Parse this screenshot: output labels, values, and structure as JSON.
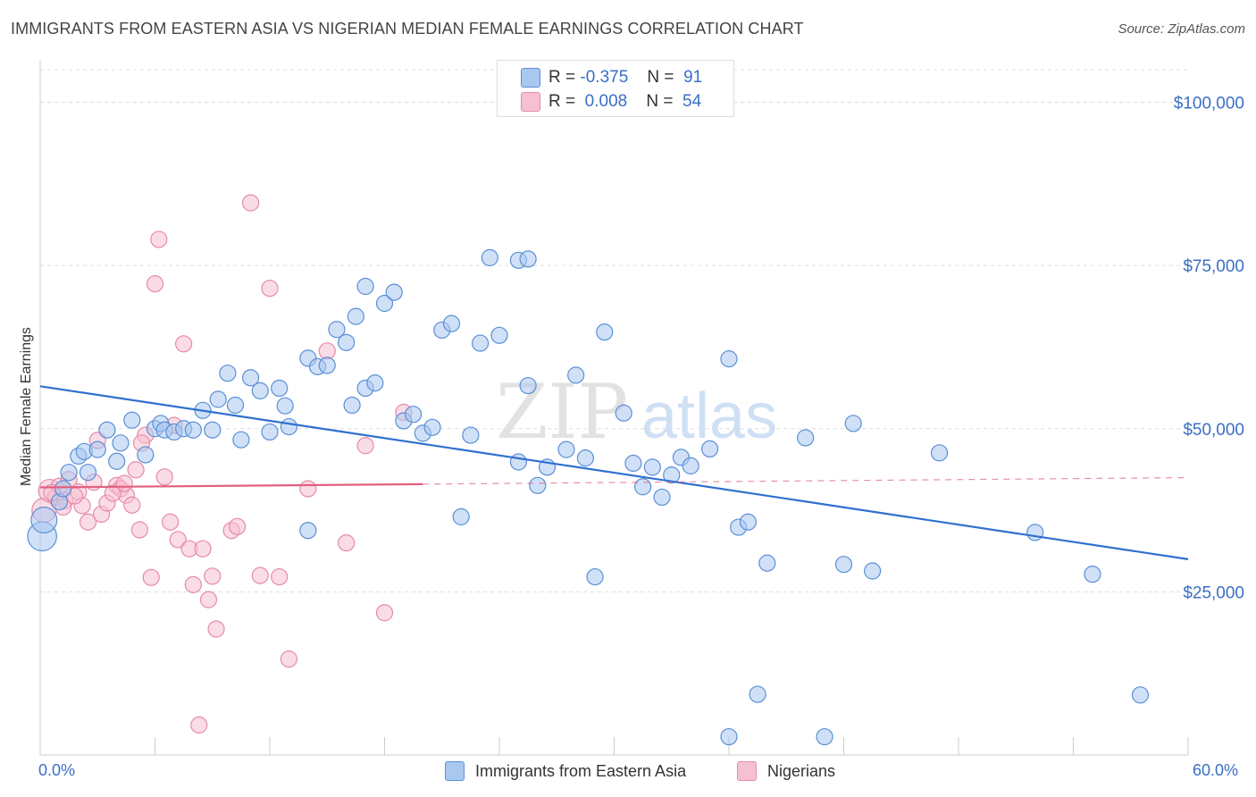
{
  "title": "IMMIGRANTS FROM EASTERN ASIA VS NIGERIAN MEDIAN FEMALE EARNINGS CORRELATION CHART",
  "source": "Source: ZipAtlas.com",
  "watermark": {
    "zip": "ZIP",
    "atlas": "atlas"
  },
  "colors": {
    "blue_fill": "#a9c8f0",
    "blue_stroke": "#5b8fd6",
    "blue_line": "#2f6fcf",
    "pink_fill": "#f6c0d2",
    "pink_stroke": "#e68aa8",
    "pink_line": "#e0607f",
    "axis_label": "#3a6fc4",
    "grid": "#dddddd"
  },
  "stats": {
    "blue": {
      "r_label": "R =",
      "r_value": "-0.375",
      "n_label": "N =",
      "n_value": "91"
    },
    "pink": {
      "r_label": "R =",
      "r_value": "0.008",
      "n_label": "N =",
      "n_value": "54"
    }
  },
  "legend": {
    "blue": "Immigrants from Eastern Asia",
    "pink": "Nigerians"
  },
  "chart_data": {
    "type": "scatter",
    "title": "IMMIGRANTS FROM EASTERN ASIA VS NIGERIAN MEDIAN FEMALE EARNINGS CORRELATION CHART",
    "xlabel": "",
    "ylabel": "Median Female Earnings",
    "xlim": [
      0,
      60
    ],
    "ylim": [
      0,
      105000
    ],
    "x_tick_labels": [
      "0.0%",
      "60.0%"
    ],
    "y_ticks": [
      25000,
      50000,
      75000,
      100000
    ],
    "y_tick_labels": [
      "$25,000",
      "$50,000",
      "$75,000",
      "$100,000"
    ],
    "grid": true,
    "legend_position": "bottom",
    "series": [
      {
        "name": "Immigrants from Eastern Asia",
        "color": "#a9c8f0",
        "trend": {
          "x": [
            0,
            60
          ],
          "y": [
            56500,
            30000
          ]
        },
        "points": [
          [
            0.1,
            33500,
            1.8
          ],
          [
            0.2,
            36000,
            1.6
          ],
          [
            1.0,
            38800,
            1
          ],
          [
            1.2,
            40800,
            1
          ],
          [
            1.5,
            43300,
            1
          ],
          [
            2.0,
            45800,
            1
          ],
          [
            2.3,
            46500,
            1
          ],
          [
            2.5,
            43300,
            1
          ],
          [
            3.0,
            46800,
            1
          ],
          [
            3.5,
            49800,
            1
          ],
          [
            4.0,
            45000,
            1
          ],
          [
            4.2,
            47800,
            1
          ],
          [
            4.8,
            51300,
            1
          ],
          [
            5.5,
            46000,
            1
          ],
          [
            6.0,
            50000,
            1
          ],
          [
            6.3,
            50800,
            1
          ],
          [
            6.5,
            49800,
            1
          ],
          [
            7.0,
            49500,
            1
          ],
          [
            7.5,
            50000,
            1
          ],
          [
            8.0,
            49800,
            1
          ],
          [
            8.5,
            52800,
            1
          ],
          [
            9.0,
            49800,
            1
          ],
          [
            9.3,
            54500,
            1
          ],
          [
            9.8,
            58500,
            1
          ],
          [
            10.2,
            53600,
            1
          ],
          [
            10.5,
            48300,
            1
          ],
          [
            11.0,
            57800,
            1
          ],
          [
            11.5,
            55800,
            1
          ],
          [
            12.0,
            49500,
            1
          ],
          [
            12.5,
            56200,
            1
          ],
          [
            13.0,
            50300,
            1
          ],
          [
            12.8,
            53500,
            1
          ],
          [
            14.0,
            60800,
            1
          ],
          [
            14.5,
            59500,
            1
          ],
          [
            15.0,
            59700,
            1
          ],
          [
            16.0,
            63200,
            1
          ],
          [
            15.5,
            65200,
            1
          ],
          [
            16.5,
            67200,
            1
          ],
          [
            17.0,
            71800,
            1
          ],
          [
            16.3,
            53600,
            1
          ],
          [
            17.0,
            56200,
            1
          ],
          [
            17.5,
            57000,
            1
          ],
          [
            18.0,
            69200,
            1
          ],
          [
            18.5,
            70900,
            1
          ],
          [
            19.0,
            51200,
            1
          ],
          [
            19.5,
            52200,
            1
          ],
          [
            20.0,
            49300,
            1
          ],
          [
            20.5,
            50200,
            1
          ],
          [
            21.0,
            65100,
            1
          ],
          [
            21.5,
            66100,
            1
          ],
          [
            22.0,
            36500,
            1
          ],
          [
            22.5,
            49000,
            1
          ],
          [
            23.0,
            63100,
            1
          ],
          [
            23.5,
            76200,
            1
          ],
          [
            24.0,
            64300,
            1
          ],
          [
            25.0,
            75800,
            1
          ],
          [
            25.5,
            76000,
            1
          ],
          [
            25.0,
            44900,
            1
          ],
          [
            25.5,
            56600,
            1
          ],
          [
            26.0,
            41300,
            1
          ],
          [
            26.5,
            44100,
            1
          ],
          [
            27.5,
            46800,
            1
          ],
          [
            28.0,
            58200,
            1
          ],
          [
            28.5,
            45500,
            1
          ],
          [
            29.0,
            27300,
            1
          ],
          [
            29.5,
            64800,
            1
          ],
          [
            30.5,
            52400,
            1
          ],
          [
            31.0,
            44700,
            1
          ],
          [
            31.5,
            41100,
            1
          ],
          [
            32.0,
            44100,
            1
          ],
          [
            32.5,
            39500,
            1
          ],
          [
            33.0,
            42900,
            1
          ],
          [
            33.5,
            45600,
            1
          ],
          [
            34.0,
            44300,
            1
          ],
          [
            35.0,
            46900,
            1
          ],
          [
            36.0,
            60700,
            1
          ],
          [
            36.5,
            34900,
            1
          ],
          [
            37.0,
            35700,
            1
          ],
          [
            37.5,
            9300,
            1
          ],
          [
            38.0,
            29400,
            1
          ],
          [
            36.0,
            2800,
            1
          ],
          [
            40.0,
            48600,
            1
          ],
          [
            41.0,
            2800,
            1
          ],
          [
            42.0,
            29200,
            1
          ],
          [
            42.5,
            50800,
            1
          ],
          [
            43.5,
            28200,
            1
          ],
          [
            47.0,
            46300,
            1
          ],
          [
            52.0,
            34100,
            1
          ],
          [
            55.0,
            27700,
            1
          ],
          [
            57.5,
            9200,
            1
          ],
          [
            14.0,
            34400,
            1
          ]
        ]
      },
      {
        "name": "Nigerians",
        "color": "#f6c0d2",
        "trend": {
          "x": [
            0,
            20
          ],
          "y": [
            41000,
            41500
          ]
        },
        "trend_dashed": {
          "x": [
            20,
            60
          ],
          "y": [
            41500,
            42500
          ]
        },
        "points": [
          [
            0.2,
            37500,
            1.5
          ],
          [
            0.5,
            40500,
            1.4
          ],
          [
            0.8,
            39500,
            1
          ],
          [
            1.0,
            41200,
            1
          ],
          [
            1.3,
            39000,
            1
          ],
          [
            1.5,
            42200,
            1
          ],
          [
            2.0,
            40300,
            1
          ],
          [
            2.2,
            38200,
            1
          ],
          [
            2.5,
            35700,
            1
          ],
          [
            3.0,
            48200,
            1
          ],
          [
            3.2,
            36900,
            1
          ],
          [
            3.5,
            38600,
            1
          ],
          [
            4.0,
            41300,
            1
          ],
          [
            4.2,
            40800,
            1
          ],
          [
            4.5,
            39800,
            1
          ],
          [
            4.8,
            38300,
            1
          ],
          [
            5.0,
            43700,
            1
          ],
          [
            5.2,
            34500,
            1
          ],
          [
            5.5,
            49000,
            1
          ],
          [
            5.8,
            27200,
            1
          ],
          [
            6.0,
            72200,
            1
          ],
          [
            6.2,
            79000,
            1
          ],
          [
            6.5,
            42600,
            1
          ],
          [
            6.8,
            35700,
            1
          ],
          [
            7.0,
            50500,
            1
          ],
          [
            7.2,
            33000,
            1
          ],
          [
            7.5,
            63000,
            1
          ],
          [
            7.8,
            31600,
            1
          ],
          [
            8.0,
            26100,
            1
          ],
          [
            8.3,
            4600,
            1
          ],
          [
            8.5,
            31600,
            1
          ],
          [
            8.8,
            23800,
            1
          ],
          [
            9.0,
            27400,
            1
          ],
          [
            9.2,
            19300,
            1
          ],
          [
            10.0,
            34400,
            1
          ],
          [
            10.3,
            35000,
            1
          ],
          [
            11.0,
            84600,
            1
          ],
          [
            11.5,
            27500,
            1
          ],
          [
            12.0,
            71500,
            1
          ],
          [
            12.5,
            27300,
            1
          ],
          [
            13.0,
            14700,
            1
          ],
          [
            14.0,
            40800,
            1
          ],
          [
            15.0,
            61900,
            1
          ],
          [
            16.0,
            32500,
            1
          ],
          [
            17.0,
            47400,
            1
          ],
          [
            18.0,
            21800,
            1
          ],
          [
            19.0,
            52500,
            1
          ],
          [
            3.8,
            40100,
            1
          ],
          [
            2.8,
            41800,
            1
          ],
          [
            1.8,
            39700,
            1
          ],
          [
            5.3,
            47800,
            1
          ],
          [
            0.6,
            40200,
            1
          ],
          [
            1.2,
            38000,
            1
          ],
          [
            4.4,
            41600,
            1
          ]
        ]
      }
    ]
  }
}
